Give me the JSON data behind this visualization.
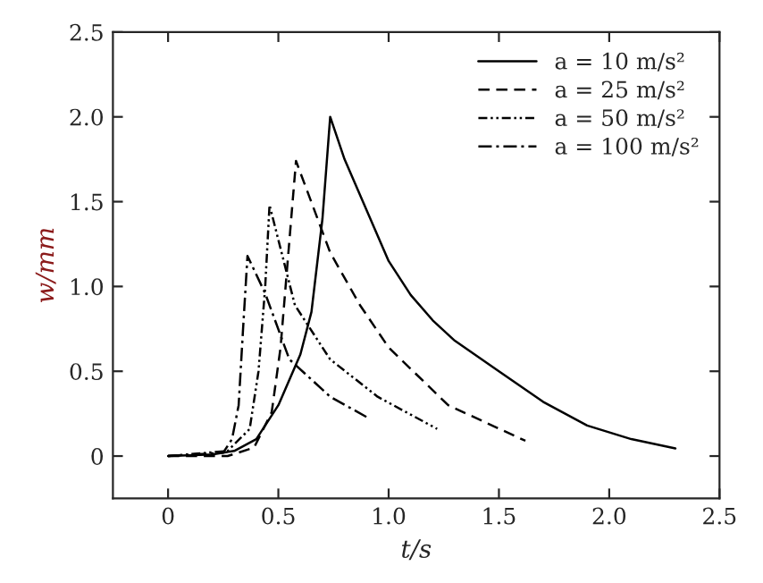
{
  "chart_data": {
    "type": "line",
    "xlabel": "t/s",
    "ylabel": "w/mm",
    "xlim": [
      -0.25,
      2.5
    ],
    "ylim": [
      -0.25,
      2.5
    ],
    "xticks": [
      0,
      {
        "value": 0.5,
        "label": "0.5"
      },
      {
        "value": 1.0,
        "label": "1.0"
      },
      {
        "value": 1.5,
        "label": "1.5"
      },
      {
        "value": 2.0,
        "label": "2.0"
      },
      {
        "value": 2.5,
        "label": "2.5"
      }
    ],
    "yticks": [
      0,
      {
        "value": 0.5,
        "label": "0.5"
      },
      {
        "value": 1.0,
        "label": "1.0"
      },
      {
        "value": 1.5,
        "label": "1.5"
      },
      {
        "value": 2.0,
        "label": "2.0"
      },
      {
        "value": 2.5,
        "label": "2.5"
      }
    ],
    "legend": "top right",
    "grid": false,
    "marker": "none",
    "series": [
      {
        "name": "a = 10 m/s²",
        "color": "#000000",
        "line_style": "solid",
        "x": [
          0,
          0.2,
          0.3,
          0.4,
          0.5,
          0.6,
          0.65,
          0.7,
          0.735,
          0.8,
          0.9,
          1.0,
          1.1,
          1.2,
          1.3,
          1.5,
          1.7,
          1.9,
          2.1,
          2.3
        ],
        "values": [
          0,
          0.01,
          0.03,
          0.1,
          0.3,
          0.6,
          0.85,
          1.4,
          2.0,
          1.75,
          1.45,
          1.15,
          0.95,
          0.8,
          0.68,
          0.5,
          0.32,
          0.18,
          0.1,
          0.045
        ]
      },
      {
        "name": "a = 25 m/s²",
        "color": "#000000",
        "line_style": "dashed",
        "x": [
          0,
          0.27,
          0.39,
          0.47,
          0.51,
          0.55,
          0.58,
          0.735,
          0.87,
          1.0,
          1.27,
          1.62
        ],
        "values": [
          0,
          0,
          0.05,
          0.26,
          0.64,
          1.27,
          1.74,
          1.2,
          0.89,
          0.64,
          0.3,
          0.09
        ]
      },
      {
        "name": "a = 50 m/s²",
        "color": "#000000",
        "line_style": "dashdotdot",
        "x": [
          0,
          0.27,
          0.37,
          0.41,
          0.44,
          0.46,
          0.575,
          0.735,
          0.95,
          1.22
        ],
        "values": [
          0,
          0.03,
          0.16,
          0.5,
          0.99,
          1.48,
          0.89,
          0.57,
          0.35,
          0.16
        ]
      },
      {
        "name": "a = 100 m/s²",
        "color": "#000000",
        "line_style": "dashdot",
        "x": [
          0,
          0.25,
          0.29,
          0.32,
          0.34,
          0.36,
          0.44,
          0.55,
          0.735,
          0.9
        ],
        "values": [
          0,
          0.02,
          0.1,
          0.3,
          0.75,
          1.18,
          0.96,
          0.57,
          0.35,
          0.23
        ]
      }
    ]
  }
}
